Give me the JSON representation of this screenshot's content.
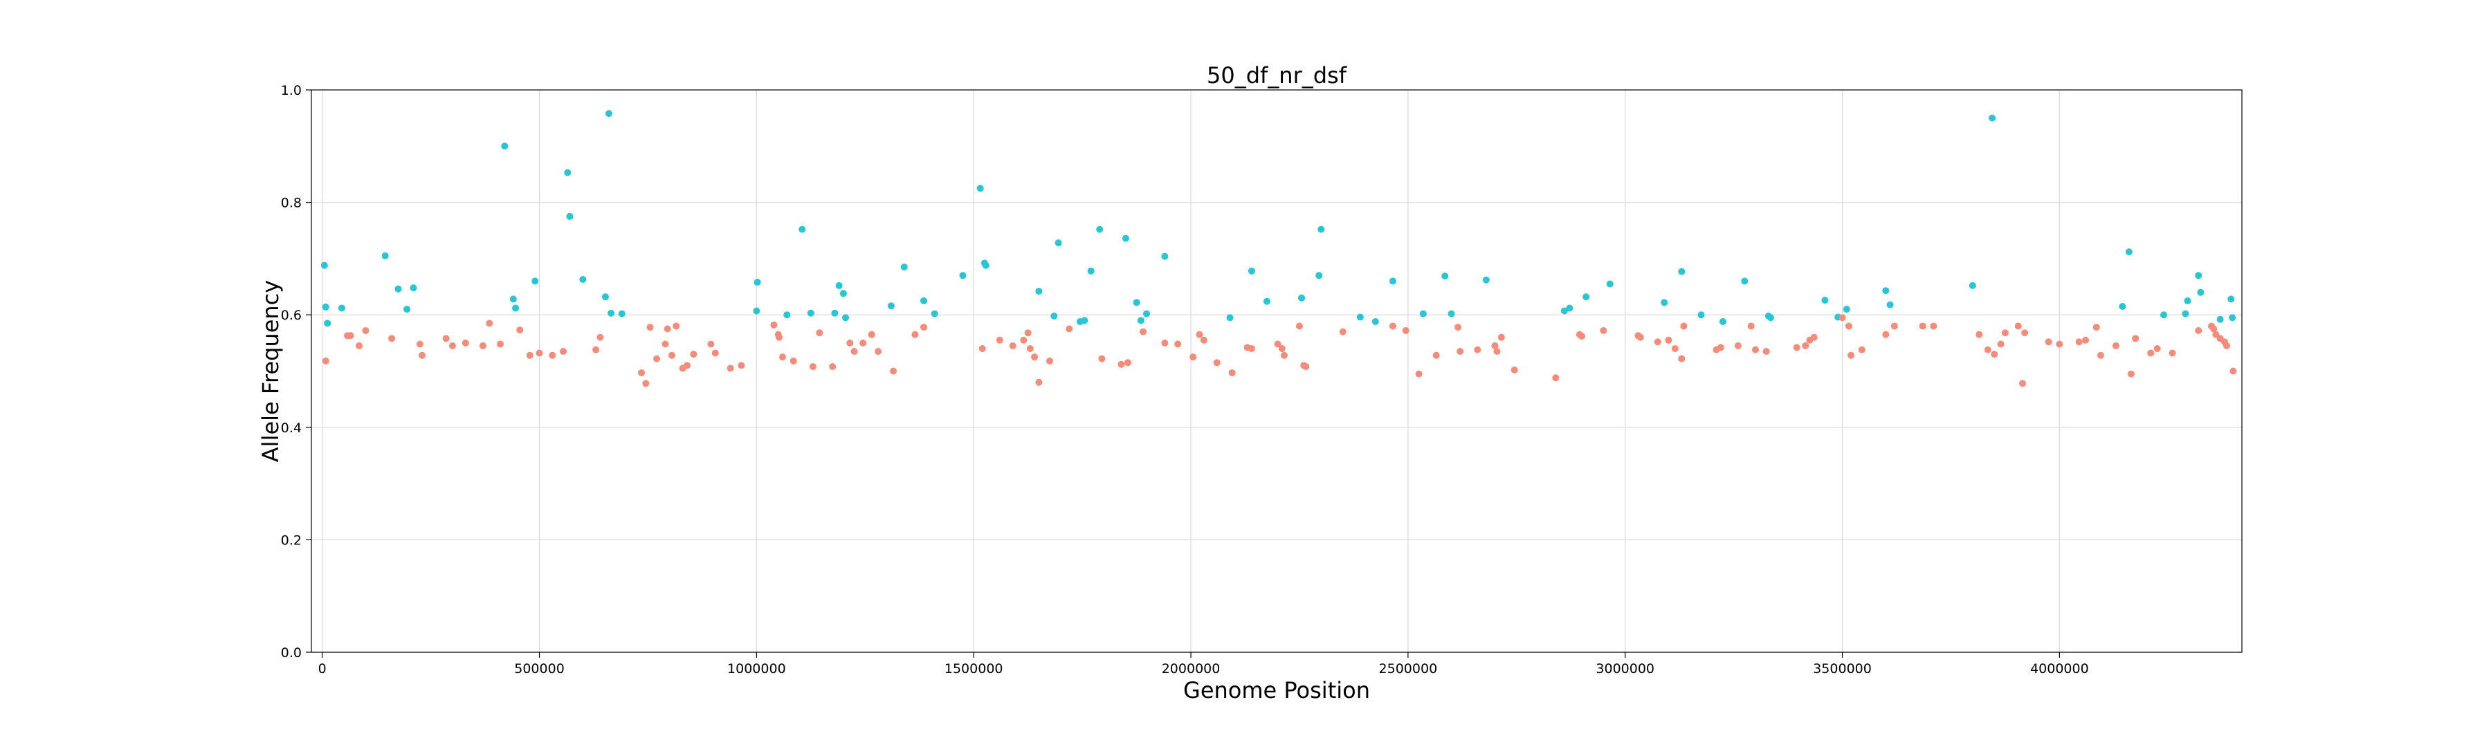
{
  "chart_data": {
    "type": "scatter",
    "title": "50_df_nr_dsf",
    "xlabel": "Genome Position",
    "ylabel": "Allele Frequency",
    "xlim": [
      -25000,
      4420000
    ],
    "ylim": [
      0,
      1.0
    ],
    "grid": true,
    "x_ticks": [
      0,
      500000,
      1000000,
      1500000,
      2000000,
      2500000,
      3000000,
      3500000,
      4000000
    ],
    "x_tick_labels": [
      "0",
      "500000",
      "1000000",
      "1500000",
      "2000000",
      "2500000",
      "3000000",
      "3500000",
      "4000000"
    ],
    "y_ticks": [
      0.0,
      0.2,
      0.4,
      0.6,
      0.8,
      1.0
    ],
    "y_tick_labels": [
      "0.0",
      "0.2",
      "0.4",
      "0.6",
      "0.8",
      "1.0"
    ],
    "colors": {
      "high": "#26c6d6",
      "low": "#f78b79"
    },
    "series": [
      {
        "color_key": "high",
        "points": [
          [
            5000,
            0.688
          ],
          [
            8000,
            0.614
          ],
          [
            12000,
            0.585
          ],
          [
            45000,
            0.612
          ],
          [
            145000,
            0.705
          ],
          [
            175000,
            0.646
          ],
          [
            195000,
            0.61
          ],
          [
            210000,
            0.648
          ],
          [
            420000,
            0.9
          ],
          [
            440000,
            0.628
          ],
          [
            445000,
            0.612
          ],
          [
            490000,
            0.66
          ],
          [
            565000,
            0.853
          ],
          [
            570000,
            0.775
          ],
          [
            600000,
            0.663
          ],
          [
            652000,
            0.632
          ],
          [
            660000,
            0.958
          ],
          [
            665000,
            0.603
          ],
          [
            690000,
            0.602
          ],
          [
            1000000,
            0.607
          ],
          [
            1002000,
            0.658
          ],
          [
            1070000,
            0.6
          ],
          [
            1105000,
            0.752
          ],
          [
            1125000,
            0.603
          ],
          [
            1180000,
            0.603
          ],
          [
            1190000,
            0.652
          ],
          [
            1200000,
            0.638
          ],
          [
            1205000,
            0.595
          ],
          [
            1310000,
            0.616
          ],
          [
            1340000,
            0.685
          ],
          [
            1385000,
            0.625
          ],
          [
            1410000,
            0.602
          ],
          [
            1475000,
            0.67
          ],
          [
            1515000,
            0.825
          ],
          [
            1525000,
            0.692
          ],
          [
            1528000,
            0.688
          ],
          [
            1650000,
            0.642
          ],
          [
            1685000,
            0.598
          ],
          [
            1695000,
            0.728
          ],
          [
            1745000,
            0.588
          ],
          [
            1755000,
            0.59
          ],
          [
            1770000,
            0.678
          ],
          [
            1790000,
            0.752
          ],
          [
            1850000,
            0.736
          ],
          [
            1875000,
            0.622
          ],
          [
            1885000,
            0.59
          ],
          [
            1898000,
            0.602
          ],
          [
            1940000,
            0.704
          ],
          [
            2090000,
            0.595
          ],
          [
            2140000,
            0.678
          ],
          [
            2175000,
            0.624
          ],
          [
            2255000,
            0.63
          ],
          [
            2295000,
            0.67
          ],
          [
            2300000,
            0.752
          ],
          [
            2390000,
            0.596
          ],
          [
            2425000,
            0.588
          ],
          [
            2465000,
            0.66
          ],
          [
            2535000,
            0.602
          ],
          [
            2585000,
            0.669
          ],
          [
            2600000,
            0.602
          ],
          [
            2680000,
            0.662
          ],
          [
            2860000,
            0.607
          ],
          [
            2872000,
            0.612
          ],
          [
            2910000,
            0.632
          ],
          [
            2965000,
            0.655
          ],
          [
            3090000,
            0.622
          ],
          [
            3130000,
            0.677
          ],
          [
            3175000,
            0.6
          ],
          [
            3225000,
            0.588
          ],
          [
            3275000,
            0.66
          ],
          [
            3330000,
            0.598
          ],
          [
            3335000,
            0.595
          ],
          [
            3460000,
            0.626
          ],
          [
            3490000,
            0.596
          ],
          [
            3510000,
            0.61
          ],
          [
            3600000,
            0.643
          ],
          [
            3610000,
            0.618
          ],
          [
            3800000,
            0.652
          ],
          [
            3845000,
            0.95
          ],
          [
            4145000,
            0.615
          ],
          [
            4160000,
            0.712
          ],
          [
            4240000,
            0.6
          ],
          [
            4290000,
            0.602
          ],
          [
            4295000,
            0.625
          ],
          [
            4320000,
            0.67
          ],
          [
            4325000,
            0.64
          ],
          [
            4370000,
            0.592
          ],
          [
            4395000,
            0.628
          ],
          [
            4398000,
            0.595
          ]
        ]
      },
      {
        "color_key": "low",
        "points": [
          [
            8000,
            0.518
          ],
          [
            58000,
            0.563
          ],
          [
            65000,
            0.563
          ],
          [
            85000,
            0.545
          ],
          [
            100000,
            0.572
          ],
          [
            160000,
            0.558
          ],
          [
            225000,
            0.548
          ],
          [
            230000,
            0.528
          ],
          [
            285000,
            0.558
          ],
          [
            300000,
            0.545
          ],
          [
            330000,
            0.55
          ],
          [
            370000,
            0.545
          ],
          [
            385000,
            0.585
          ],
          [
            410000,
            0.548
          ],
          [
            455000,
            0.573
          ],
          [
            478000,
            0.528
          ],
          [
            500000,
            0.532
          ],
          [
            530000,
            0.528
          ],
          [
            555000,
            0.535
          ],
          [
            630000,
            0.538
          ],
          [
            640000,
            0.56
          ],
          [
            735000,
            0.497
          ],
          [
            745000,
            0.478
          ],
          [
            755000,
            0.578
          ],
          [
            770000,
            0.522
          ],
          [
            790000,
            0.548
          ],
          [
            795000,
            0.575
          ],
          [
            805000,
            0.528
          ],
          [
            815000,
            0.58
          ],
          [
            830000,
            0.505
          ],
          [
            840000,
            0.51
          ],
          [
            855000,
            0.53
          ],
          [
            895000,
            0.548
          ],
          [
            905000,
            0.532
          ],
          [
            940000,
            0.505
          ],
          [
            965000,
            0.51
          ],
          [
            1040000,
            0.582
          ],
          [
            1050000,
            0.565
          ],
          [
            1052000,
            0.56
          ],
          [
            1060000,
            0.525
          ],
          [
            1085000,
            0.518
          ],
          [
            1130000,
            0.508
          ],
          [
            1145000,
            0.568
          ],
          [
            1175000,
            0.508
          ],
          [
            1215000,
            0.55
          ],
          [
            1225000,
            0.535
          ],
          [
            1245000,
            0.55
          ],
          [
            1265000,
            0.565
          ],
          [
            1280000,
            0.535
          ],
          [
            1315000,
            0.5
          ],
          [
            1365000,
            0.565
          ],
          [
            1385000,
            0.578
          ],
          [
            1520000,
            0.54
          ],
          [
            1560000,
            0.555
          ],
          [
            1590000,
            0.545
          ],
          [
            1615000,
            0.555
          ],
          [
            1625000,
            0.568
          ],
          [
            1630000,
            0.54
          ],
          [
            1640000,
            0.525
          ],
          [
            1650000,
            0.48
          ],
          [
            1675000,
            0.518
          ],
          [
            1720000,
            0.575
          ],
          [
            1795000,
            0.522
          ],
          [
            1840000,
            0.512
          ],
          [
            1855000,
            0.515
          ],
          [
            1890000,
            0.57
          ],
          [
            1940000,
            0.55
          ],
          [
            1970000,
            0.548
          ],
          [
            2005000,
            0.525
          ],
          [
            2020000,
            0.565
          ],
          [
            2030000,
            0.555
          ],
          [
            2060000,
            0.515
          ],
          [
            2095000,
            0.497
          ],
          [
            2130000,
            0.542
          ],
          [
            2140000,
            0.54
          ],
          [
            2200000,
            0.548
          ],
          [
            2210000,
            0.54
          ],
          [
            2215000,
            0.528
          ],
          [
            2250000,
            0.58
          ],
          [
            2260000,
            0.51
          ],
          [
            2265000,
            0.508
          ],
          [
            2350000,
            0.57
          ],
          [
            2465000,
            0.58
          ],
          [
            2495000,
            0.572
          ],
          [
            2525000,
            0.495
          ],
          [
            2565000,
            0.528
          ],
          [
            2615000,
            0.578
          ],
          [
            2620000,
            0.535
          ],
          [
            2660000,
            0.538
          ],
          [
            2700000,
            0.545
          ],
          [
            2705000,
            0.535
          ],
          [
            2715000,
            0.56
          ],
          [
            2745000,
            0.502
          ],
          [
            2840000,
            0.488
          ],
          [
            2895000,
            0.565
          ],
          [
            2900000,
            0.562
          ],
          [
            2950000,
            0.572
          ],
          [
            3030000,
            0.563
          ],
          [
            3035000,
            0.56
          ],
          [
            3075000,
            0.552
          ],
          [
            3100000,
            0.555
          ],
          [
            3115000,
            0.54
          ],
          [
            3130000,
            0.522
          ],
          [
            3135000,
            0.58
          ],
          [
            3210000,
            0.538
          ],
          [
            3220000,
            0.542
          ],
          [
            3260000,
            0.545
          ],
          [
            3290000,
            0.58
          ],
          [
            3300000,
            0.538
          ],
          [
            3325000,
            0.535
          ],
          [
            3395000,
            0.542
          ],
          [
            3415000,
            0.545
          ],
          [
            3425000,
            0.555
          ],
          [
            3435000,
            0.56
          ],
          [
            3500000,
            0.595
          ],
          [
            3515000,
            0.58
          ],
          [
            3520000,
            0.528
          ],
          [
            3545000,
            0.538
          ],
          [
            3600000,
            0.565
          ],
          [
            3620000,
            0.58
          ],
          [
            3685000,
            0.58
          ],
          [
            3710000,
            0.58
          ],
          [
            3815000,
            0.565
          ],
          [
            3835000,
            0.538
          ],
          [
            3850000,
            0.53
          ],
          [
            3865000,
            0.548
          ],
          [
            3875000,
            0.568
          ],
          [
            3905000,
            0.58
          ],
          [
            3915000,
            0.478
          ],
          [
            3920000,
            0.568
          ],
          [
            3975000,
            0.552
          ],
          [
            4000000,
            0.548
          ],
          [
            4045000,
            0.552
          ],
          [
            4060000,
            0.555
          ],
          [
            4085000,
            0.578
          ],
          [
            4095000,
            0.528
          ],
          [
            4130000,
            0.545
          ],
          [
            4165000,
            0.495
          ],
          [
            4175000,
            0.558
          ],
          [
            4210000,
            0.532
          ],
          [
            4225000,
            0.54
          ],
          [
            4260000,
            0.532
          ],
          [
            4320000,
            0.572
          ],
          [
            4350000,
            0.58
          ],
          [
            4355000,
            0.575
          ],
          [
            4360000,
            0.565
          ],
          [
            4370000,
            0.558
          ],
          [
            4380000,
            0.552
          ],
          [
            4385000,
            0.545
          ],
          [
            4400000,
            0.5
          ]
        ]
      }
    ]
  }
}
